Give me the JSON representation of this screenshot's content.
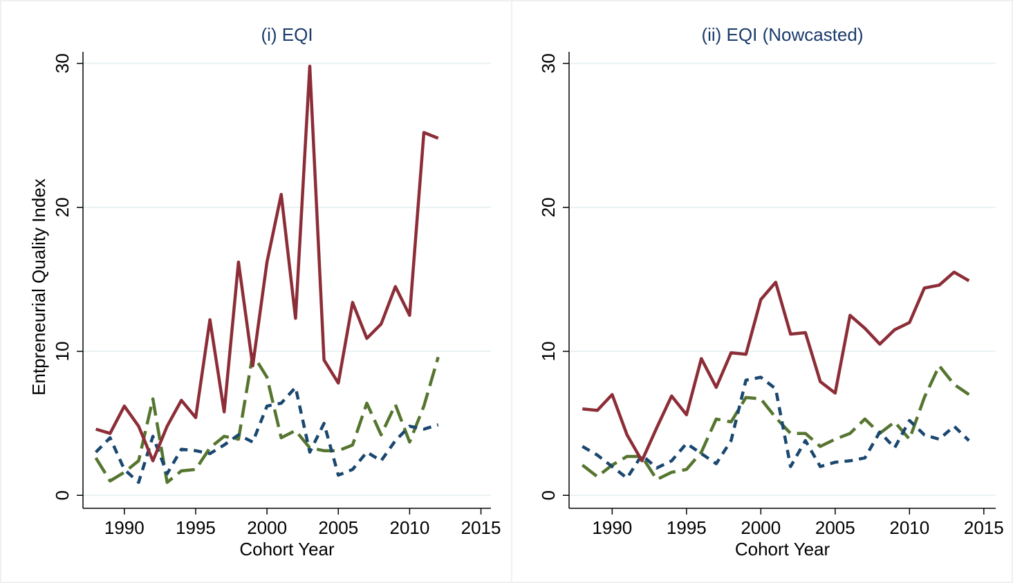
{
  "chart_data": [
    {
      "type": "line",
      "title": "(i) EQI",
      "xlabel": "Cohort Year",
      "ylabel": "Entpreneurial Quality Index",
      "x": [
        1988,
        1989,
        1990,
        1991,
        1992,
        1993,
        1994,
        1995,
        1996,
        1997,
        1998,
        1999,
        2000,
        2001,
        2002,
        2003,
        2004,
        2005,
        2006,
        2007,
        2008,
        2009,
        2010,
        2011,
        2012
      ],
      "series": [
        {
          "color": "#8c2d37",
          "dash": "solid",
          "values": [
            4.6,
            4.3,
            6.2,
            4.8,
            2.4,
            4.8,
            6.6,
            5.4,
            12.2,
            5.8,
            16.2,
            9.0,
            16.2,
            20.9,
            12.3,
            29.8,
            9.4,
            7.8,
            13.4,
            10.9,
            11.9,
            14.5,
            12.5,
            25.2,
            24.8
          ]
        },
        {
          "color": "#1a476f",
          "dash": "short",
          "values": [
            3.0,
            4.0,
            1.8,
            0.9,
            4.1,
            1.5,
            3.2,
            3.1,
            2.9,
            3.5,
            4.2,
            3.7,
            6.2,
            6.4,
            7.5,
            3.0,
            5.0,
            1.4,
            1.8,
            3.0,
            2.4,
            3.8,
            4.8,
            4.6,
            4.9
          ]
        },
        {
          "color": "#55752f",
          "dash": "long",
          "values": [
            2.6,
            1.0,
            1.6,
            2.4,
            6.7,
            0.9,
            1.7,
            1.8,
            3.3,
            4.1,
            3.9,
            9.8,
            8.2,
            4.0,
            4.5,
            3.3,
            3.1,
            3.1,
            3.5,
            6.4,
            4.2,
            6.3,
            3.7,
            6.2,
            9.6
          ]
        }
      ],
      "xlim": [
        1987.1,
        2015.7
      ],
      "xticks": [
        1990,
        1995,
        2000,
        2005,
        2010,
        2015
      ],
      "ylim": [
        -0.9,
        30.8
      ],
      "yticks": [
        0,
        10,
        20,
        30
      ],
      "grid": true
    },
    {
      "type": "line",
      "title": "(ii) EQI (Nowcasted)",
      "xlabel": "Cohort Year",
      "x": [
        1988,
        1989,
        1990,
        1991,
        1992,
        1993,
        1994,
        1995,
        1996,
        1997,
        1998,
        1999,
        2000,
        2001,
        2002,
        2003,
        2004,
        2005,
        2006,
        2007,
        2008,
        2009,
        2010,
        2011,
        2012,
        2013,
        2014
      ],
      "series": [
        {
          "color": "#8c2d37",
          "dash": "solid",
          "values": [
            6.0,
            5.9,
            7.0,
            4.2,
            2.4,
            4.7,
            6.9,
            5.6,
            9.5,
            7.5,
            9.9,
            9.8,
            13.6,
            14.8,
            11.2,
            11.3,
            7.9,
            7.1,
            12.5,
            11.6,
            10.5,
            11.5,
            12.0,
            14.4,
            14.6,
            15.5,
            14.9
          ]
        },
        {
          "color": "#1a476f",
          "dash": "short",
          "values": [
            3.4,
            2.8,
            2.0,
            1.2,
            2.8,
            1.9,
            2.4,
            3.6,
            2.9,
            2.2,
            3.8,
            8.0,
            8.2,
            7.4,
            2.0,
            3.8,
            2.0,
            2.3,
            2.4,
            2.6,
            4.4,
            3.3,
            5.2,
            4.2,
            3.9,
            4.8,
            3.8
          ]
        },
        {
          "color": "#55752f",
          "dash": "long",
          "values": [
            2.1,
            1.3,
            2.1,
            2.7,
            2.7,
            1.1,
            1.6,
            1.8,
            3.0,
            5.3,
            5.1,
            6.8,
            6.7,
            5.4,
            4.3,
            4.3,
            3.4,
            3.9,
            4.3,
            5.3,
            4.3,
            5.1,
            3.9,
            6.8,
            9.0,
            7.7,
            7.0
          ]
        }
      ],
      "xlim": [
        1987.1,
        2015.8
      ],
      "xticks": [
        1990,
        1995,
        2000,
        2005,
        2010,
        2015
      ],
      "ylim": [
        -0.9,
        30.8
      ],
      "yticks": [
        0,
        10,
        20,
        30
      ],
      "grid": true
    }
  ]
}
